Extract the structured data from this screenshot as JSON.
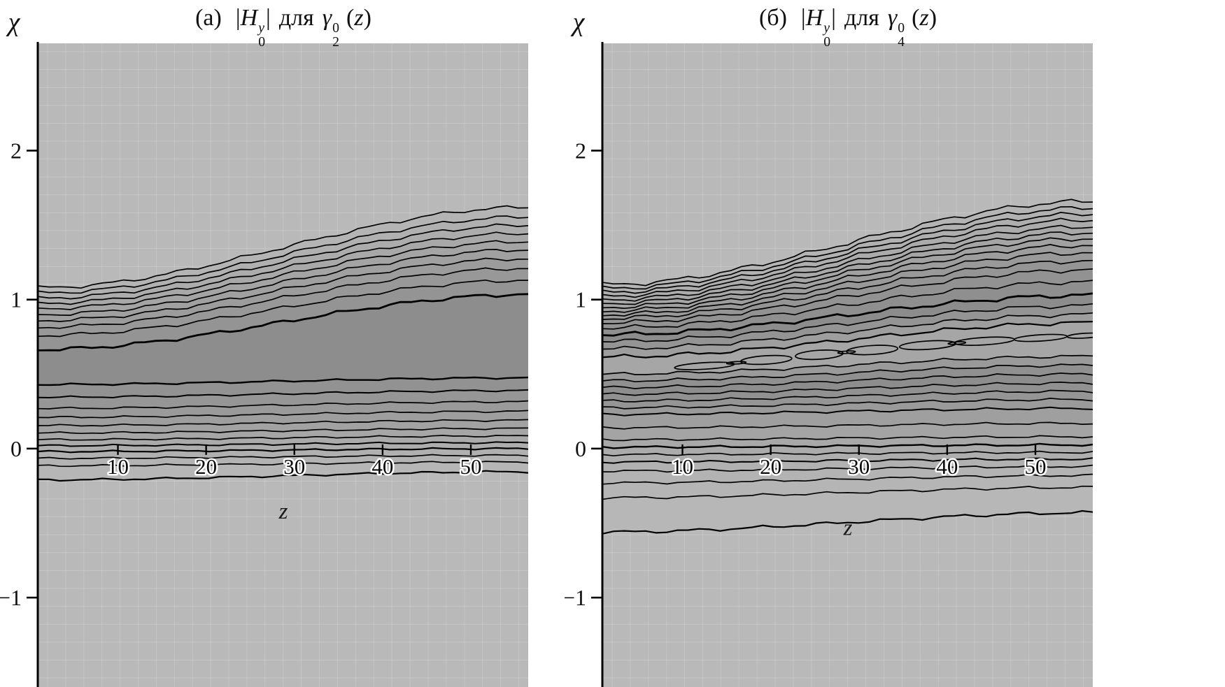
{
  "figure": {
    "panels": [
      {
        "title": {
          "index": "(а)",
          "bar_open": "|",
          "h": "H",
          "h_sup": "y",
          "h_sub": "0",
          "bar_close": "|",
          "for_word": "для",
          "gamma": "γ",
          "g_sup": "0",
          "g_sub": "2",
          "paren_open": "(",
          "var_z": "z",
          "paren_close": ")"
        },
        "y_axis_label": "χ",
        "x_axis_label": "z"
      },
      {
        "title": {
          "index": "(б)",
          "bar_open": "|",
          "h": "H",
          "h_sup": "y",
          "h_sub": "0",
          "bar_close": "|",
          "for_word": "для",
          "gamma": "γ",
          "g_sup": "0",
          "g_sub": "4",
          "paren_open": "(",
          "var_z": "z",
          "paren_close": ")"
        },
        "y_axis_label": "χ",
        "x_axis_label": "z"
      }
    ]
  },
  "chart_data": [
    {
      "type": "contour",
      "panel_label": "(а)",
      "title": "(а) |H₀^y| для γ₂^0(z)",
      "xlabel": "z",
      "ylabel": "χ",
      "xlim": [
        1,
        56.5
      ],
      "ylim": [
        -1.6,
        2.72
      ],
      "x_ticks": [
        10,
        20,
        30,
        40,
        50
      ],
      "y_ticks": [
        2,
        1,
        0,
        -1
      ],
      "background": "#b9b9b9",
      "grid": true,
      "xlabel_y_chi": -0.47,
      "jitter": 1.0,
      "contours": [
        {
          "l": 1.08,
          "r": 1.62
        },
        {
          "l": 1.045,
          "r": 1.555
        },
        {
          "l": 1.01,
          "r": 1.5
        },
        {
          "l": 0.975,
          "r": 1.445
        },
        {
          "l": 0.94,
          "r": 1.39
        },
        {
          "l": 0.9,
          "r": 1.335
        },
        {
          "l": 0.86,
          "r": 1.275
        },
        {
          "l": 0.815,
          "r": 1.21
        },
        {
          "l": 0.76,
          "r": 1.13
        },
        {
          "l": 0.665,
          "r": 1.035,
          "w": 2.8
        },
        {
          "l": 0.43,
          "r": 0.475,
          "w": 2.4
        },
        {
          "l": 0.345,
          "r": 0.39,
          "w": 2.0
        },
        {
          "l": 0.27,
          "r": 0.315
        },
        {
          "l": 0.21,
          "r": 0.25
        },
        {
          "l": 0.155,
          "r": 0.19
        },
        {
          "l": 0.105,
          "r": 0.135
        },
        {
          "l": 0.06,
          "r": 0.085
        },
        {
          "l": 0.02,
          "r": 0.04,
          "w": 2.0
        },
        {
          "l": -0.02,
          "r": 0.0,
          "w": 2.2
        },
        {
          "l": -0.065,
          "r": -0.045
        },
        {
          "l": -0.115,
          "r": -0.09
        },
        {
          "l": -0.21,
          "r": -0.155,
          "w": 2.2
        }
      ],
      "band_fills": [
        "#b4b4b4",
        "#b0b0b0",
        "#acacac",
        "#a8a8a8",
        "#a4a4a4",
        "#a0a0a0",
        "#9c9c9c",
        "#989898",
        "#949494",
        "#8d8d8d",
        "#929292",
        "#969696",
        "#9a9a9a",
        "#9e9e9e",
        "#a2a2a2",
        "#a6a6a6",
        "#aaaaaa",
        "#adadad",
        "#b0b0b0",
        "#b3b3b3",
        "#b6b6b6"
      ],
      "islands": []
    },
    {
      "type": "contour",
      "panel_label": "(б)",
      "title": "(б) |H₀^y| для γ₄^0(z)",
      "xlabel": "z",
      "ylabel": "χ",
      "xlim": [
        1,
        56.5
      ],
      "ylim": [
        -1.6,
        2.72
      ],
      "x_ticks": [
        10,
        20,
        30,
        40,
        50
      ],
      "y_ticks": [
        2,
        1,
        0,
        -1
      ],
      "background": "#b9b9b9",
      "grid": true,
      "xlabel_y_chi": -0.58,
      "jitter": 1.25,
      "contours": [
        {
          "l": 1.1,
          "r": 1.66
        },
        {
          "l": 1.075,
          "r": 1.615
        },
        {
          "l": 1.05,
          "r": 1.575
        },
        {
          "l": 1.025,
          "r": 1.535
        },
        {
          "l": 1.0,
          "r": 1.49
        },
        {
          "l": 0.975,
          "r": 1.45
        },
        {
          "l": 0.95,
          "r": 1.41
        },
        {
          "l": 0.925,
          "r": 1.365
        },
        {
          "l": 0.9,
          "r": 1.315
        },
        {
          "l": 0.875,
          "r": 1.26
        },
        {
          "l": 0.845,
          "r": 1.2
        },
        {
          "l": 0.81,
          "r": 1.12
        },
        {
          "l": 0.765,
          "r": 1.03,
          "w": 2.8
        },
        {
          "l": 0.72,
          "r": 0.96
        },
        {
          "l": 0.67,
          "r": 0.9
        },
        {
          "l": 0.615,
          "r": 0.845,
          "w": 2.2
        },
        {
          "l": 0.5,
          "r": 0.62
        },
        {
          "l": 0.455,
          "r": 0.56
        },
        {
          "l": 0.41,
          "r": 0.5
        },
        {
          "l": 0.365,
          "r": 0.44
        },
        {
          "l": 0.32,
          "r": 0.385
        },
        {
          "l": 0.275,
          "r": 0.33
        },
        {
          "l": 0.23,
          "r": 0.27,
          "w": 2.0
        },
        {
          "l": 0.14,
          "r": 0.17
        },
        {
          "l": 0.06,
          "r": 0.08
        },
        {
          "l": 0.01,
          "r": 0.025,
          "w": 2.4
        },
        {
          "l": -0.04,
          "r": -0.025
        },
        {
          "l": -0.09,
          "r": -0.07,
          "w": 2.0
        },
        {
          "l": -0.15,
          "r": -0.12
        },
        {
          "l": -0.23,
          "r": -0.18
        },
        {
          "l": -0.33,
          "r": -0.26
        },
        {
          "l": -0.56,
          "r": -0.43,
          "w": 2.2
        }
      ],
      "band_fills": [
        "#b4b4b4",
        "#b1b1b1",
        "#aeaeae",
        "#ababab",
        "#a8a8a8",
        "#a5a5a5",
        "#a1a1a1",
        "#9d9d9d",
        "#999999",
        "#959595",
        "#929292",
        "#8f8f8f",
        "#8c8c8c",
        "#949494",
        "#9e9e9e",
        "#a6a6a6",
        "#9a9a9a",
        "#909090",
        "#8d8d8d",
        "#919191",
        "#959595",
        "#9a9a9a",
        "#9f9f9f",
        "#a4a4a4",
        "#a8a8a8",
        "#ababab",
        "#aeaeae",
        "#b1b1b1",
        "#b3b3b3",
        "#b5b5b5",
        "#b7b7b7"
      ],
      "islands": [
        {
          "z": 12.5,
          "c": 0.555,
          "rz": 3.4,
          "rc": 0.022
        },
        {
          "z": 19.5,
          "c": 0.595,
          "rz": 2.9,
          "rc": 0.028
        },
        {
          "z": 25.5,
          "c": 0.63,
          "rz": 2.7,
          "rc": 0.03
        },
        {
          "z": 31.5,
          "c": 0.662,
          "rz": 2.9,
          "rc": 0.03
        },
        {
          "z": 37.8,
          "c": 0.694,
          "rz": 3.2,
          "rc": 0.028
        },
        {
          "z": 44.2,
          "c": 0.721,
          "rz": 3.4,
          "rc": 0.025
        },
        {
          "z": 50.6,
          "c": 0.743,
          "rz": 3.0,
          "rc": 0.021
        },
        {
          "z": 55.6,
          "c": 0.758,
          "rz": 2.0,
          "rc": 0.016
        },
        {
          "z": 16.1,
          "c": 0.576,
          "rz": 1.1,
          "rc": 0.008
        },
        {
          "z": 28.6,
          "c": 0.647,
          "rz": 1.0,
          "rc": 0.008
        },
        {
          "z": 41.1,
          "c": 0.708,
          "rz": 1.0,
          "rc": 0.008
        }
      ]
    }
  ]
}
